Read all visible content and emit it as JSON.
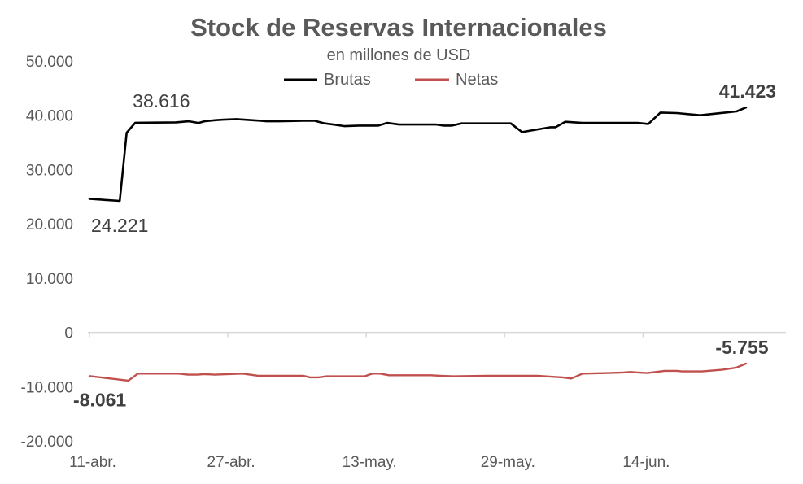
{
  "chart_data": {
    "type": "line",
    "title": "Stock de Reservas Internacionales",
    "subtitle": "en millones de USD",
    "ylim": [
      -20000,
      50000
    ],
    "y_ticks": [
      50000,
      40000,
      30000,
      20000,
      10000,
      0,
      -10000,
      -20000
    ],
    "y_tick_labels": [
      "50.000",
      "40.000",
      "30.000",
      "20.000",
      "10.000",
      "0",
      "-10.000",
      "-20.000"
    ],
    "x_tick_labels": [
      "11-abr.",
      "27-abr.",
      "13-may.",
      "29-may.",
      "14-jun."
    ],
    "x_tick_days": [
      0,
      16,
      32,
      48,
      64
    ],
    "x_range_days": [
      0,
      76
    ],
    "legend": [
      "Brutas",
      "Netas"
    ],
    "colors": {
      "Brutas": "#000000",
      "Netas": "#c0504d"
    },
    "series": [
      {
        "name": "Brutas",
        "x": [
          0,
          3.5,
          4.3,
          5.3,
          10,
          11.5,
          12.6,
          13.3,
          14.6,
          15.5,
          17,
          19.8,
          20.5,
          22,
          24.7,
          26,
          27.2,
          28.2,
          29.5,
          31.2,
          32.3,
          33.4,
          34.4,
          35.8,
          38,
          40.1,
          40.9,
          41.9,
          43,
          46.2,
          48.7,
          50,
          53.3,
          53.9,
          55,
          57,
          61.1,
          63.4,
          64.6,
          66,
          67.9,
          70.6,
          74.8,
          75.9
        ],
        "values": [
          24600,
          24221,
          36800,
          38616,
          38700,
          38900,
          38600,
          38900,
          39100,
          39200,
          39300,
          39000,
          38900,
          38900,
          39000,
          39000,
          38500,
          38300,
          38000,
          38100,
          38100,
          38100,
          38600,
          38300,
          38300,
          38300,
          38100,
          38100,
          38500,
          38500,
          38500,
          36900,
          37800,
          37800,
          38800,
          38600,
          38600,
          38600,
          38400,
          40500,
          40400,
          40000,
          40700,
          41423
        ]
      },
      {
        "name": "Netas",
        "x": [
          0,
          4.5,
          5.6,
          10.3,
          11.4,
          12.5,
          13.2,
          14.5,
          17.7,
          19.5,
          24.7,
          25.5,
          26.5,
          27.4,
          28.2,
          31.8,
          32.7,
          33.6,
          34.6,
          39.5,
          40.5,
          42.1,
          45.9,
          51.8,
          53.7,
          54.7,
          55.7,
          57,
          60,
          61.7,
          62.5,
          63.4,
          64.5,
          66.5,
          67.9,
          68.5,
          69.5,
          70.8,
          73.1,
          74.8,
          75.9
        ],
        "values": [
          -8061,
          -8900,
          -7600,
          -7600,
          -7800,
          -7800,
          -7700,
          -7800,
          -7600,
          -8000,
          -8000,
          -8300,
          -8300,
          -8100,
          -8100,
          -8100,
          -7600,
          -7600,
          -7900,
          -7900,
          -8000,
          -8100,
          -8000,
          -8000,
          -8200,
          -8300,
          -8500,
          -7600,
          -7500,
          -7400,
          -7300,
          -7400,
          -7500,
          -7100,
          -7100,
          -7200,
          -7200,
          -7200,
          -6900,
          -6500,
          -5755
        ]
      }
    ],
    "annotations": [
      {
        "text": "24.221",
        "series": "Brutas",
        "x": 3.5,
        "y": 24221,
        "bold": false
      },
      {
        "text": "38.616",
        "series": "Brutas",
        "x": 5.3,
        "y": 38616,
        "bold": false
      },
      {
        "text": "41.423",
        "series": "Brutas",
        "x": 75.9,
        "y": 41423,
        "bold": true
      },
      {
        "text": "-8.061",
        "series": "Netas",
        "x": 0,
        "y": -8061,
        "bold": true
      },
      {
        "text": "-5.755",
        "series": "Netas",
        "x": 75.9,
        "y": -5755,
        "bold": true
      }
    ]
  }
}
